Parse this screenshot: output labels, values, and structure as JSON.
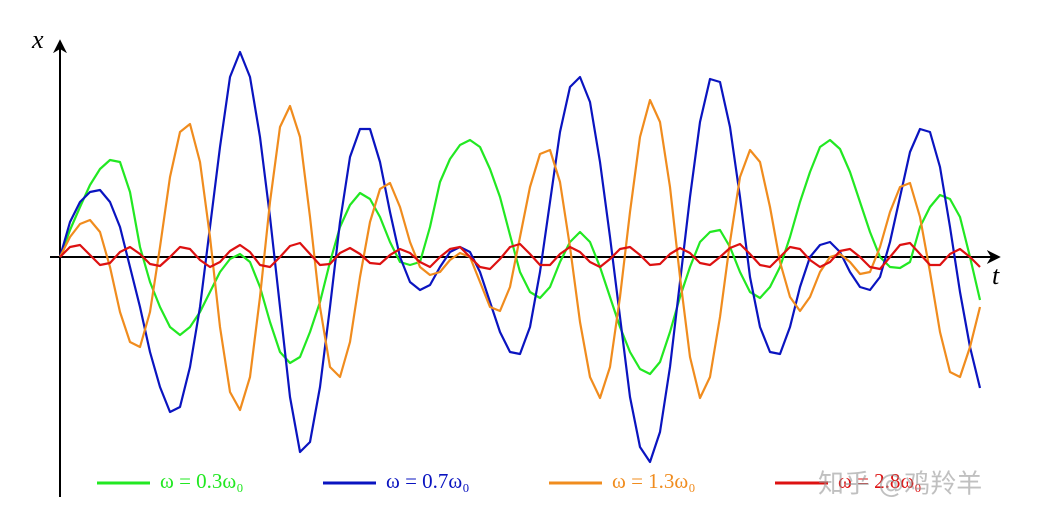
{
  "chart_data": {
    "type": "line",
    "x_label": "t",
    "y_label": "x",
    "watermark": "知乎 @鸡羚羊",
    "xlim": [
      -1,
      94
    ],
    "ylim": [
      -2.4,
      2.17
    ],
    "x": [
      0,
      1,
      2,
      3,
      4,
      5,
      6,
      7,
      8,
      9,
      10,
      11,
      12,
      13,
      14,
      15,
      16,
      17,
      18,
      19,
      20,
      21,
      22,
      23,
      24,
      25,
      26,
      27,
      28,
      29,
      30,
      31,
      32,
      33,
      34,
      35,
      36,
      37,
      38,
      39,
      40,
      41,
      42,
      43,
      44,
      45,
      46,
      47,
      48,
      49,
      50,
      51,
      52,
      53,
      54,
      55,
      56,
      57,
      58,
      59,
      60,
      61,
      62,
      63,
      64,
      65,
      66,
      67,
      68,
      69,
      70,
      71,
      72,
      73,
      74,
      75,
      76,
      77,
      78,
      79,
      80,
      81,
      82,
      83,
      84,
      85,
      86,
      87,
      88,
      89,
      90,
      91,
      92
    ],
    "series": [
      {
        "name": "ω = 0.3ω₀",
        "color": "#22e822",
        "values": [
          0,
          0.27,
          0.5,
          0.72,
          0.88,
          0.97,
          0.95,
          0.65,
          0.1,
          -0.25,
          -0.5,
          -0.7,
          -0.78,
          -0.7,
          -0.55,
          -0.35,
          -0.15,
          -0.02,
          0.03,
          -0.05,
          -0.3,
          -0.65,
          -0.95,
          -1.06,
          -1.0,
          -0.75,
          -0.45,
          -0.05,
          0.3,
          0.52,
          0.64,
          0.58,
          0.4,
          0.15,
          -0.05,
          -0.08,
          -0.05,
          0.3,
          0.75,
          0.98,
          1.12,
          1.17,
          1.1,
          0.88,
          0.6,
          0.22,
          -0.15,
          -0.35,
          -0.41,
          -0.3,
          -0.05,
          0.15,
          0.25,
          0.15,
          -0.1,
          -0.4,
          -0.7,
          -0.95,
          -1.12,
          -1.17,
          -1.05,
          -0.75,
          -0.4,
          -0.1,
          0.15,
          0.25,
          0.27,
          0.1,
          -0.15,
          -0.35,
          -0.41,
          -0.3,
          -0.1,
          0.2,
          0.55,
          0.85,
          1.1,
          1.17,
          1.08,
          0.85,
          0.55,
          0.25,
          0.0,
          -0.1,
          -0.11,
          -0.05,
          0.3,
          0.5,
          0.62,
          0.58,
          0.4,
          0.0,
          -0.43
        ]
      },
      {
        "name": "ω = 0.7ω₀",
        "color": "#0a14c0",
        "values": [
          0,
          0.35,
          0.55,
          0.65,
          0.67,
          0.55,
          0.3,
          -0.1,
          -0.5,
          -0.95,
          -1.3,
          -1.55,
          -1.5,
          -1.1,
          -0.5,
          0.3,
          1.1,
          1.8,
          2.05,
          1.8,
          1.2,
          0.4,
          -0.5,
          -1.4,
          -1.95,
          -1.85,
          -1.3,
          -0.5,
          0.35,
          1.0,
          1.28,
          1.28,
          0.95,
          0.45,
          0.0,
          -0.25,
          -0.33,
          -0.28,
          -0.1,
          0.05,
          0.1,
          0.05,
          -0.15,
          -0.45,
          -0.75,
          -0.95,
          -0.97,
          -0.7,
          -0.15,
          0.55,
          1.25,
          1.7,
          1.8,
          1.55,
          0.95,
          0.2,
          -0.6,
          -1.4,
          -1.9,
          -2.05,
          -1.75,
          -1.1,
          -0.25,
          0.6,
          1.35,
          1.78,
          1.75,
          1.3,
          0.6,
          -0.2,
          -0.7,
          -0.95,
          -0.97,
          -0.7,
          -0.3,
          0.0,
          0.12,
          0.15,
          0.05,
          -0.15,
          -0.3,
          -0.33,
          -0.2,
          0.15,
          0.6,
          1.05,
          1.28,
          1.25,
          0.9,
          0.3,
          -0.35,
          -0.9,
          -1.31
        ]
      },
      {
        "name": "ω = 1.3ω₀",
        "color": "#f08c1e",
        "values": [
          0,
          0.2,
          0.33,
          0.37,
          0.25,
          -0.1,
          -0.55,
          -0.85,
          -0.9,
          -0.55,
          0.1,
          0.8,
          1.25,
          1.33,
          0.95,
          0.2,
          -0.7,
          -1.35,
          -1.53,
          -1.2,
          -0.4,
          0.55,
          1.3,
          1.51,
          1.2,
          0.4,
          -0.5,
          -1.1,
          -1.2,
          -0.85,
          -0.2,
          0.35,
          0.68,
          0.74,
          0.5,
          0.15,
          -0.1,
          -0.18,
          -0.15,
          -0.03,
          0.04,
          0.0,
          -0.25,
          -0.5,
          -0.54,
          -0.3,
          0.2,
          0.7,
          1.03,
          1.07,
          0.75,
          0.1,
          -0.65,
          -1.2,
          -1.41,
          -1.1,
          -0.4,
          0.45,
          1.2,
          1.57,
          1.35,
          0.7,
          -0.2,
          -1.0,
          -1.41,
          -1.2,
          -0.6,
          0.15,
          0.8,
          1.07,
          0.95,
          0.5,
          -0.05,
          -0.4,
          -0.54,
          -0.4,
          -0.15,
          0.0,
          0.03,
          -0.05,
          -0.17,
          -0.15,
          0.1,
          0.45,
          0.7,
          0.74,
          0.4,
          -0.15,
          -0.75,
          -1.15,
          -1.2,
          -0.9,
          -0.5
        ]
      },
      {
        "name": "ω = 2.8ω₀",
        "color": "#dd1111",
        "values": [
          0,
          0.1,
          0.12,
          0.02,
          -0.08,
          -0.06,
          0.05,
          0.1,
          0.03,
          -0.07,
          -0.09,
          0.0,
          0.1,
          0.08,
          -0.03,
          -0.1,
          -0.05,
          0.06,
          0.12,
          0.05,
          -0.08,
          -0.1,
          0.0,
          0.11,
          0.14,
          0.03,
          -0.08,
          -0.07,
          0.04,
          0.09,
          0.03,
          -0.06,
          -0.07,
          0.02,
          0.08,
          0.04,
          -0.05,
          -0.1,
          0.0,
          0.08,
          0.1,
          0.0,
          -0.1,
          -0.12,
          -0.02,
          0.1,
          0.13,
          0.03,
          -0.08,
          -0.08,
          0.03,
          0.1,
          0.05,
          -0.05,
          -0.1,
          -0.02,
          0.08,
          0.1,
          0.02,
          -0.08,
          -0.07,
          0.03,
          0.09,
          0.04,
          -0.06,
          -0.08,
          0.0,
          0.09,
          0.13,
          0.03,
          -0.08,
          -0.1,
          0.0,
          0.1,
          0.08,
          -0.03,
          -0.1,
          -0.05,
          0.06,
          0.08,
          0.0,
          -0.1,
          -0.12,
          0.0,
          0.12,
          0.14,
          0.03,
          -0.08,
          -0.08,
          0.03,
          0.08,
          0.0,
          -0.1
        ]
      }
    ]
  }
}
